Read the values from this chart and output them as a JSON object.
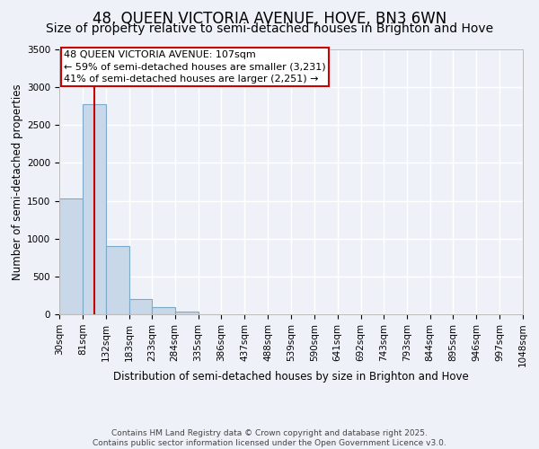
{
  "title": "48, QUEEN VICTORIA AVENUE, HOVE, BN3 6WN",
  "subtitle": "Size of property relative to semi-detached houses in Brighton and Hove",
  "xlabel": "Distribution of semi-detached houses by size in Brighton and Hove",
  "ylabel": "Number of semi-detached properties",
  "bin_edges": [
    30,
    81,
    132,
    183,
    233,
    284,
    335,
    386,
    437,
    488,
    539,
    590,
    641,
    692,
    743,
    793,
    844,
    895,
    946,
    997,
    1048
  ],
  "bar_heights": [
    1530,
    2775,
    900,
    200,
    95,
    30,
    5,
    0,
    0,
    0,
    0,
    0,
    0,
    0,
    0,
    0,
    0,
    0,
    0,
    0
  ],
  "bar_color": "#c8d8e8",
  "bar_edge_color": "#7aaac8",
  "property_size": 107,
  "property_line_color": "#cc0000",
  "ylim": [
    0,
    3500
  ],
  "yticks": [
    0,
    500,
    1000,
    1500,
    2000,
    2500,
    3000,
    3500
  ],
  "annotation_title": "48 QUEEN VICTORIA AVENUE: 107sqm",
  "annotation_line1": "← 59% of semi-detached houses are smaller (3,231)",
  "annotation_line2": "41% of semi-detached houses are larger (2,251) →",
  "annotation_box_color": "#ffffff",
  "annotation_box_edge_color": "#cc0000",
  "footer1": "Contains HM Land Registry data © Crown copyright and database right 2025.",
  "footer2": "Contains public sector information licensed under the Open Government Licence v3.0.",
  "background_color": "#eef2f8",
  "grid_color": "#ffffff",
  "title_fontsize": 12,
  "subtitle_fontsize": 10,
  "axis_label_fontsize": 8.5,
  "tick_fontsize": 7.5,
  "annotation_fontsize": 8,
  "footer_fontsize": 6.5
}
